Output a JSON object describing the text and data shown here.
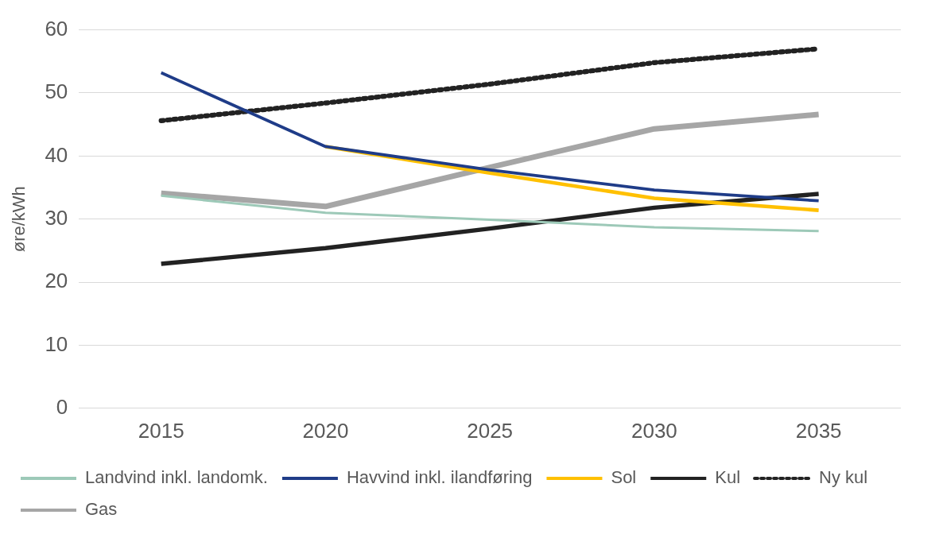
{
  "chart_data": {
    "type": "line",
    "ylabel": "øre/kWh",
    "categories": [
      "2015",
      "2020",
      "2025",
      "2030",
      "2035"
    ],
    "series": [
      {
        "name": "Landvind inkl. landomk.",
        "color": "#9dc9b8",
        "values": [
          33.7,
          31.0,
          29.9,
          28.7,
          28.1
        ]
      },
      {
        "name": "Havvind inkl. ilandføring",
        "color": "#1f3c88",
        "values": [
          53.2,
          41.5,
          37.8,
          34.6,
          32.9
        ]
      },
      {
        "name": "Sol",
        "color": "#ffc000",
        "values": [
          null,
          41.5,
          37.3,
          33.3,
          31.4
        ]
      },
      {
        "name": "Kul",
        "color": "#222222",
        "values": [
          22.9,
          25.4,
          28.5,
          31.8,
          34.0
        ]
      },
      {
        "name": "Ny kul",
        "color": "#222222",
        "line_style": "dotted",
        "values": [
          45.6,
          48.4,
          51.4,
          54.8,
          57.0
        ]
      },
      {
        "name": "Gas",
        "color": "#a6a6a6",
        "values": [
          34.1,
          32.0,
          38.2,
          44.3,
          46.6
        ]
      }
    ],
    "ylim": [
      0,
      60
    ],
    "yticks": [
      0,
      10,
      20,
      30,
      40,
      50,
      60
    ],
    "grid": "y",
    "legend": "bottom",
    "marker": "none"
  }
}
